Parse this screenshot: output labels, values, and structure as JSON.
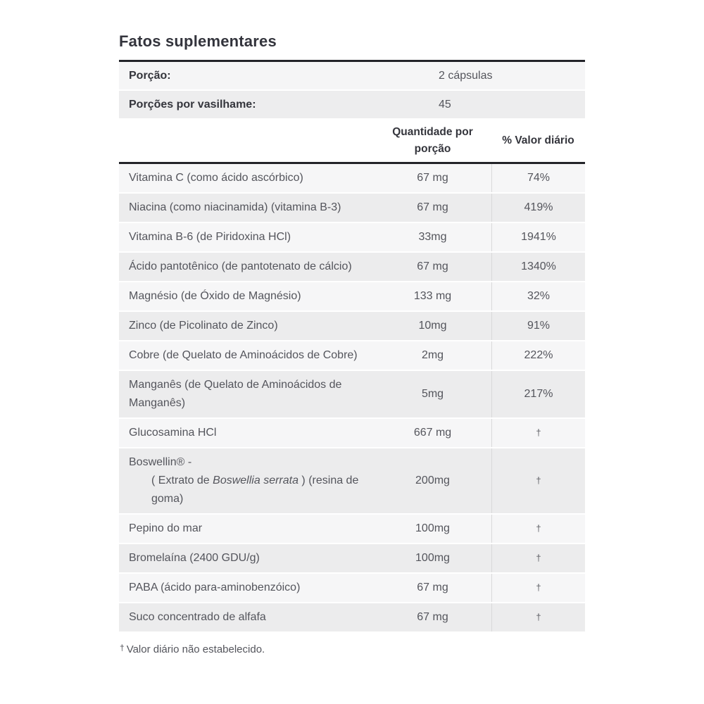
{
  "title": "Fatos suplementares",
  "theme": {
    "heavy_border": "#232429",
    "row_light": "#f6f6f7",
    "row_dark": "#ececed",
    "divider": "#d9d9da",
    "heading_text": "#34353c",
    "body_text": "#54555c",
    "background": "#ffffff"
  },
  "serving_info": [
    {
      "label": "Porção:",
      "value": "2 cápsulas"
    },
    {
      "label": "Porções por vasilhame:",
      "value": "45"
    }
  ],
  "columns": {
    "amount": "Quantidade por porção",
    "daily_value": "% Valor diário"
  },
  "rows": [
    {
      "name": "Vitamina C (como ácido ascórbico)",
      "amount": "67 mg",
      "dv": "74%"
    },
    {
      "name": "Niacina (como niacinamida) (vitamina B-3)",
      "amount": "67 mg",
      "dv": "419%"
    },
    {
      "name": "Vitamina B-6 (de Piridoxina HCl)",
      "amount": "33mg",
      "dv": "1941%"
    },
    {
      "name": "Ácido pantotênico (de pantotenato de cálcio)",
      "amount": "67 mg",
      "dv": "1340%"
    },
    {
      "name": "Magnésio (de Óxido de Magnésio)",
      "amount": "133 mg",
      "dv": "32%"
    },
    {
      "name": "Zinco (de Picolinato de Zinco)",
      "amount": "10mg",
      "dv": "91%"
    },
    {
      "name": "Cobre (de Quelato de Aminoácidos de Cobre)",
      "amount": "2mg",
      "dv": "222%"
    },
    {
      "name": "Manganês (de Quelato de Aminoácidos de Manganês)",
      "amount": "5mg",
      "dv": "217%"
    },
    {
      "name": "Glucosamina HCl",
      "amount": "667 mg",
      "dv": "†"
    },
    {
      "name_line1": "Boswellin® -",
      "name_extract_pre": "( Extrato de ",
      "name_extract_italic": "Boswellia serrata",
      "name_extract_post": " ) (resina de goma)",
      "amount": "200mg",
      "dv": "†"
    },
    {
      "name": "Pepino do mar",
      "amount": "100mg",
      "dv": "†"
    },
    {
      "name": "Bromelaína (2400 GDU/g)",
      "amount": "100mg",
      "dv": "†"
    },
    {
      "name": "PABA (ácido para-aminobenzóico)",
      "amount": "67 mg",
      "dv": "†"
    },
    {
      "name": "Suco concentrado de alfafa",
      "amount": "67 mg",
      "dv": "†"
    }
  ],
  "footnote": {
    "symbol": "†",
    "text": "Valor diário não estabelecido."
  }
}
